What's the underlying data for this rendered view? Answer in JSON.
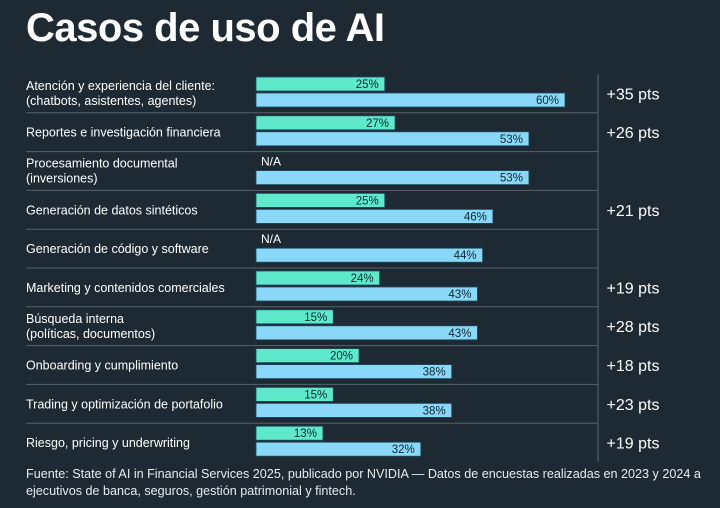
{
  "title": "Casos de uso de AI",
  "source": "Fuente: State of AI in Financial Services 2025, publicado por NVIDIA — Datos de encuestas realizadas en 2023 y 2024 a ejecutivos de banca, seguros, gestión patrimonial y fintech.",
  "colors": {
    "background": "#1e2a33",
    "bar_2023": "#5ee8cc",
    "bar_2024": "#8ad8f7",
    "bar_outline": "#1f4a60",
    "divider": "#55636d",
    "text": "#ffffff"
  },
  "chart_data": {
    "type": "bar",
    "orientation": "horizontal",
    "xlim": [
      0,
      100
    ],
    "value_suffix": "%",
    "missing_label": "N/A",
    "categories": [
      "Atención y experiencia del cliente:\n(chatbots, asistentes, agentes)",
      "Reportes e investigación financiera",
      "Procesamiento documental\n(inversiones)",
      "Generación de datos sintéticos",
      "Generación de código y software",
      "Marketing y contenidos comerciales",
      "Búsqueda interna\n(políticas, documentos)",
      "Onboarding y cumplimiento",
      "Trading y optimización de portafolio",
      "Riesgo, pricing y underwriting"
    ],
    "series": [
      {
        "values": [
          25,
          27,
          null,
          25,
          null,
          24,
          15,
          20,
          15,
          13
        ]
      },
      {
        "values": [
          60,
          53,
          53,
          46,
          44,
          43,
          43,
          38,
          38,
          32
        ]
      }
    ],
    "change_labels": [
      "+35 pts",
      "+26 pts",
      "",
      "+21 pts",
      "",
      "+19 pts",
      "+28 pts",
      "+18 pts",
      "+23 pts",
      "+19 pts"
    ]
  }
}
